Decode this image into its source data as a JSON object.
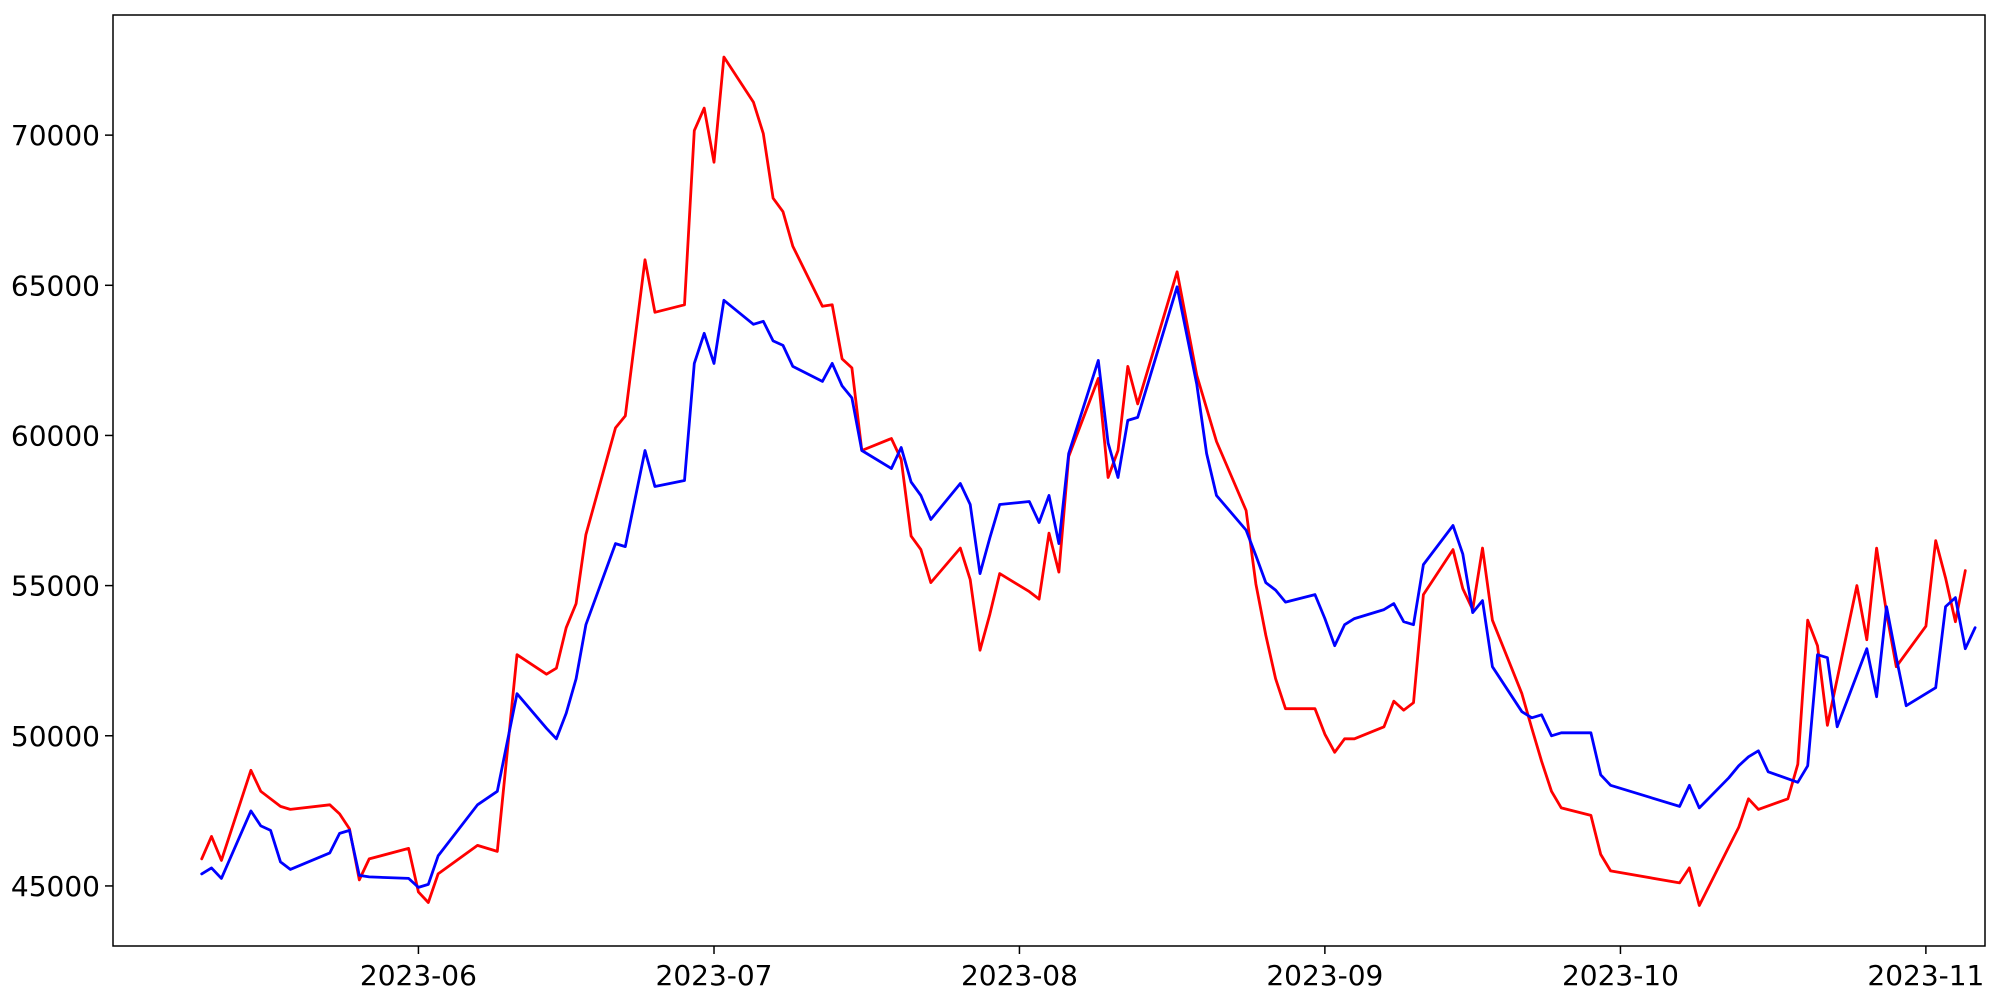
{
  "chart_data": {
    "type": "line",
    "title": "",
    "xlabel": "",
    "ylabel": "",
    "x_type": "date",
    "xlim": [
      "2023-05-01",
      "2023-11-07"
    ],
    "ylim": [
      43000,
      74000
    ],
    "x_ticks": [
      "2023-06-01",
      "2023-07-01",
      "2023-08-01",
      "2023-09-01",
      "2023-10-01",
      "2023-11-01"
    ],
    "x_tick_labels": [
      "2023-06",
      "2023-07",
      "2023-08",
      "2023-09",
      "2023-10",
      "2023-11"
    ],
    "y_ticks": [
      45000,
      50000,
      55000,
      60000,
      65000,
      70000
    ],
    "y_tick_labels": [
      "45000",
      "50000",
      "55000",
      "60000",
      "65000",
      "70000"
    ],
    "grid": false,
    "legend": false,
    "series": [
      {
        "color": "#ff0000",
        "points": [
          [
            "2023-05-10",
            45900
          ],
          [
            "2023-05-11",
            46650
          ],
          [
            "2023-05-12",
            45850
          ],
          [
            "2023-05-15",
            48850
          ],
          [
            "2023-05-16",
            48150
          ],
          [
            "2023-05-17",
            47900
          ],
          [
            "2023-05-18",
            47650
          ],
          [
            "2023-05-19",
            47550
          ],
          [
            "2023-05-23",
            47700
          ],
          [
            "2023-05-24",
            47400
          ],
          [
            "2023-05-25",
            46900
          ],
          [
            "2023-05-26",
            45200
          ],
          [
            "2023-05-27",
            45900
          ],
          [
            "2023-05-31",
            46250
          ],
          [
            "2023-06-01",
            44800
          ],
          [
            "2023-06-02",
            44450
          ],
          [
            "2023-06-03",
            45400
          ],
          [
            "2023-06-07",
            46350
          ],
          [
            "2023-06-09",
            46150
          ],
          [
            "2023-06-11",
            52700
          ],
          [
            "2023-06-14",
            52050
          ],
          [
            "2023-06-15",
            52250
          ],
          [
            "2023-06-16",
            53600
          ],
          [
            "2023-06-17",
            54400
          ],
          [
            "2023-06-18",
            56700
          ],
          [
            "2023-06-21",
            60250
          ],
          [
            "2023-06-22",
            60650
          ],
          [
            "2023-06-24",
            65850
          ],
          [
            "2023-06-25",
            64100
          ],
          [
            "2023-06-28",
            64350
          ],
          [
            "2023-06-29",
            70150
          ],
          [
            "2023-06-30",
            70900
          ],
          [
            "2023-07-01",
            69100
          ],
          [
            "2023-07-02",
            72600
          ],
          [
            "2023-07-05",
            71100
          ],
          [
            "2023-07-06",
            70050
          ],
          [
            "2023-07-07",
            67900
          ],
          [
            "2023-07-08",
            67450
          ],
          [
            "2023-07-09",
            66300
          ],
          [
            "2023-07-12",
            64300
          ],
          [
            "2023-07-13",
            64350
          ],
          [
            "2023-07-14",
            62550
          ],
          [
            "2023-07-15",
            62250
          ],
          [
            "2023-07-16",
            59500
          ],
          [
            "2023-07-19",
            59900
          ],
          [
            "2023-07-20",
            59200
          ],
          [
            "2023-07-21",
            56650
          ],
          [
            "2023-07-22",
            56200
          ],
          [
            "2023-07-23",
            55100
          ],
          [
            "2023-07-26",
            56250
          ],
          [
            "2023-07-27",
            55200
          ],
          [
            "2023-07-28",
            52850
          ],
          [
            "2023-07-29",
            54050
          ],
          [
            "2023-07-30",
            55400
          ],
          [
            "2023-08-02",
            54800
          ],
          [
            "2023-08-03",
            54550
          ],
          [
            "2023-08-04",
            56750
          ],
          [
            "2023-08-05",
            55450
          ],
          [
            "2023-08-06",
            59300
          ],
          [
            "2023-08-09",
            61900
          ],
          [
            "2023-08-10",
            58600
          ],
          [
            "2023-08-11",
            59500
          ],
          [
            "2023-08-12",
            62300
          ],
          [
            "2023-08-13",
            61050
          ],
          [
            "2023-08-17",
            65450
          ],
          [
            "2023-08-19",
            62000
          ],
          [
            "2023-08-21",
            59800
          ],
          [
            "2023-08-24",
            57500
          ],
          [
            "2023-08-25",
            55050
          ],
          [
            "2023-08-26",
            53350
          ],
          [
            "2023-08-27",
            51900
          ],
          [
            "2023-08-28",
            50900
          ],
          [
            "2023-08-31",
            50900
          ],
          [
            "2023-09-01",
            50050
          ],
          [
            "2023-09-02",
            49450
          ],
          [
            "2023-09-03",
            49900
          ],
          [
            "2023-09-04",
            49900
          ],
          [
            "2023-09-07",
            50300
          ],
          [
            "2023-09-08",
            51150
          ],
          [
            "2023-09-09",
            50850
          ],
          [
            "2023-09-10",
            51100
          ],
          [
            "2023-09-11",
            54700
          ],
          [
            "2023-09-14",
            56200
          ],
          [
            "2023-09-15",
            54900
          ],
          [
            "2023-09-16",
            54200
          ],
          [
            "2023-09-17",
            56250
          ],
          [
            "2023-09-18",
            53850
          ],
          [
            "2023-09-21",
            51400
          ],
          [
            "2023-09-22",
            50250
          ],
          [
            "2023-09-23",
            49150
          ],
          [
            "2023-09-24",
            48150
          ],
          [
            "2023-09-25",
            47600
          ],
          [
            "2023-09-28",
            47350
          ],
          [
            "2023-09-29",
            46050
          ],
          [
            "2023-09-30",
            45500
          ],
          [
            "2023-10-07",
            45100
          ],
          [
            "2023-10-08",
            45600
          ],
          [
            "2023-10-09",
            44350
          ],
          [
            "2023-10-12",
            46300
          ],
          [
            "2023-10-13",
            46950
          ],
          [
            "2023-10-14",
            47900
          ],
          [
            "2023-10-15",
            47550
          ],
          [
            "2023-10-18",
            47900
          ],
          [
            "2023-10-19",
            49050
          ],
          [
            "2023-10-20",
            53850
          ],
          [
            "2023-10-21",
            53000
          ],
          [
            "2023-10-22",
            50350
          ],
          [
            "2023-10-25",
            55000
          ],
          [
            "2023-10-26",
            53200
          ],
          [
            "2023-10-27",
            56250
          ],
          [
            "2023-10-28",
            54100
          ],
          [
            "2023-10-29",
            52300
          ],
          [
            "2023-11-01",
            53650
          ],
          [
            "2023-11-02",
            56500
          ],
          [
            "2023-11-03",
            55250
          ],
          [
            "2023-11-04",
            53800
          ],
          [
            "2023-11-05",
            55500
          ]
        ]
      },
      {
        "color": "#0000ff",
        "points": [
          [
            "2023-05-10",
            45400
          ],
          [
            "2023-05-11",
            45600
          ],
          [
            "2023-05-12",
            45250
          ],
          [
            "2023-05-15",
            47500
          ],
          [
            "2023-05-16",
            47000
          ],
          [
            "2023-05-17",
            46850
          ],
          [
            "2023-05-18",
            45800
          ],
          [
            "2023-05-19",
            45550
          ],
          [
            "2023-05-23",
            46100
          ],
          [
            "2023-05-24",
            46750
          ],
          [
            "2023-05-25",
            46850
          ],
          [
            "2023-05-26",
            45350
          ],
          [
            "2023-05-27",
            45300
          ],
          [
            "2023-05-31",
            45250
          ],
          [
            "2023-06-01",
            44950
          ],
          [
            "2023-06-02",
            45050
          ],
          [
            "2023-06-03",
            46000
          ],
          [
            "2023-06-07",
            47700
          ],
          [
            "2023-06-09",
            48150
          ],
          [
            "2023-06-11",
            51400
          ],
          [
            "2023-06-14",
            50250
          ],
          [
            "2023-06-15",
            49900
          ],
          [
            "2023-06-16",
            50750
          ],
          [
            "2023-06-17",
            51900
          ],
          [
            "2023-06-18",
            53700
          ],
          [
            "2023-06-21",
            56400
          ],
          [
            "2023-06-22",
            56300
          ],
          [
            "2023-06-24",
            59500
          ],
          [
            "2023-06-25",
            58300
          ],
          [
            "2023-06-28",
            58500
          ],
          [
            "2023-06-29",
            62400
          ],
          [
            "2023-06-30",
            63400
          ],
          [
            "2023-07-01",
            62400
          ],
          [
            "2023-07-02",
            64500
          ],
          [
            "2023-07-05",
            63700
          ],
          [
            "2023-07-06",
            63800
          ],
          [
            "2023-07-07",
            63150
          ],
          [
            "2023-07-08",
            63000
          ],
          [
            "2023-07-09",
            62300
          ],
          [
            "2023-07-12",
            61800
          ],
          [
            "2023-07-13",
            62400
          ],
          [
            "2023-07-14",
            61650
          ],
          [
            "2023-07-15",
            61250
          ],
          [
            "2023-07-16",
            59500
          ],
          [
            "2023-07-19",
            58900
          ],
          [
            "2023-07-20",
            59600
          ],
          [
            "2023-07-21",
            58450
          ],
          [
            "2023-07-22",
            58000
          ],
          [
            "2023-07-23",
            57200
          ],
          [
            "2023-07-26",
            58400
          ],
          [
            "2023-07-27",
            57700
          ],
          [
            "2023-07-28",
            55400
          ],
          [
            "2023-07-29",
            56600
          ],
          [
            "2023-07-30",
            57700
          ],
          [
            "2023-08-02",
            57800
          ],
          [
            "2023-08-03",
            57100
          ],
          [
            "2023-08-04",
            58000
          ],
          [
            "2023-08-05",
            56400
          ],
          [
            "2023-08-06",
            59400
          ],
          [
            "2023-08-09",
            62500
          ],
          [
            "2023-08-10",
            59750
          ],
          [
            "2023-08-11",
            58600
          ],
          [
            "2023-08-12",
            60500
          ],
          [
            "2023-08-13",
            60600
          ],
          [
            "2023-08-17",
            64950
          ],
          [
            "2023-08-19",
            61700
          ],
          [
            "2023-08-20",
            59400
          ],
          [
            "2023-08-21",
            58000
          ],
          [
            "2023-08-24",
            56850
          ],
          [
            "2023-08-25",
            56000
          ],
          [
            "2023-08-26",
            55100
          ],
          [
            "2023-08-27",
            54850
          ],
          [
            "2023-08-28",
            54450
          ],
          [
            "2023-08-31",
            54700
          ],
          [
            "2023-09-01",
            53900
          ],
          [
            "2023-09-02",
            53000
          ],
          [
            "2023-09-03",
            53700
          ],
          [
            "2023-09-04",
            53900
          ],
          [
            "2023-09-07",
            54200
          ],
          [
            "2023-09-08",
            54400
          ],
          [
            "2023-09-09",
            53800
          ],
          [
            "2023-09-10",
            53700
          ],
          [
            "2023-09-11",
            55700
          ],
          [
            "2023-09-14",
            57000
          ],
          [
            "2023-09-15",
            56050
          ],
          [
            "2023-09-16",
            54100
          ],
          [
            "2023-09-17",
            54500
          ],
          [
            "2023-09-18",
            52300
          ],
          [
            "2023-09-21",
            50800
          ],
          [
            "2023-09-22",
            50600
          ],
          [
            "2023-09-23",
            50700
          ],
          [
            "2023-09-24",
            50000
          ],
          [
            "2023-09-25",
            50100
          ],
          [
            "2023-09-28",
            50100
          ],
          [
            "2023-09-29",
            48700
          ],
          [
            "2023-09-30",
            48350
          ],
          [
            "2023-10-07",
            47650
          ],
          [
            "2023-10-08",
            48350
          ],
          [
            "2023-10-09",
            47600
          ],
          [
            "2023-10-12",
            48600
          ],
          [
            "2023-10-13",
            49000
          ],
          [
            "2023-10-14",
            49300
          ],
          [
            "2023-10-15",
            49500
          ],
          [
            "2023-10-16",
            48800
          ],
          [
            "2023-10-19",
            48450
          ],
          [
            "2023-10-20",
            49000
          ],
          [
            "2023-10-21",
            52700
          ],
          [
            "2023-10-22",
            52600
          ],
          [
            "2023-10-23",
            50300
          ],
          [
            "2023-10-26",
            52900
          ],
          [
            "2023-10-27",
            51300
          ],
          [
            "2023-10-28",
            54300
          ],
          [
            "2023-10-29",
            52600
          ],
          [
            "2023-10-30",
            51000
          ],
          [
            "2023-11-02",
            51600
          ],
          [
            "2023-11-03",
            54300
          ],
          [
            "2023-11-04",
            54600
          ],
          [
            "2023-11-05",
            52900
          ],
          [
            "2023-11-06",
            53600
          ]
        ]
      }
    ]
  }
}
